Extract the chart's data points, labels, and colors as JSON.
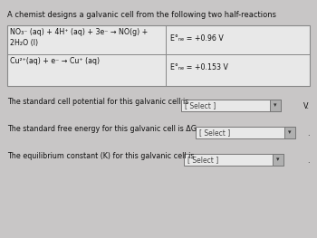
{
  "title": "A chemist designs a galvanic cell from the following two half-reactions",
  "row1_left": "NO₃⁻ (aq) + 4H⁺ (aq) + 3e⁻ → NO(g) +\n2H₂O (l)",
  "row1_right": "E°ₙₑ⁤ = +0.96 V",
  "row2_left": "Cu²⁺(aq) + e⁻ → Cu⁺ (aq)",
  "row2_right": "E°ₙₑ⁤ = +0.153 V",
  "q1_text": "The standard cell potential for this galvanic cell is",
  "q1_suffix": "V.",
  "q2_text": "The standard free energy for this galvanic cell is ΔG",
  "q2_suffix": ".",
  "q3_text": "The equilibrium constant (K) for this galvanic cell is",
  "q3_suffix": ".",
  "select_label": "[ Select ]",
  "bg_color": "#c8c6c6",
  "table_bg": "#e8e8e8",
  "table_border": "#888888",
  "text_color": "#111111",
  "select_bg": "#e8e8e8",
  "select_border": "#777777",
  "arrow_bg": "#b0b0b0",
  "title_fontsize": 6.0,
  "body_fontsize": 5.8,
  "table_fontsize": 5.7,
  "select_fontsize": 5.5
}
